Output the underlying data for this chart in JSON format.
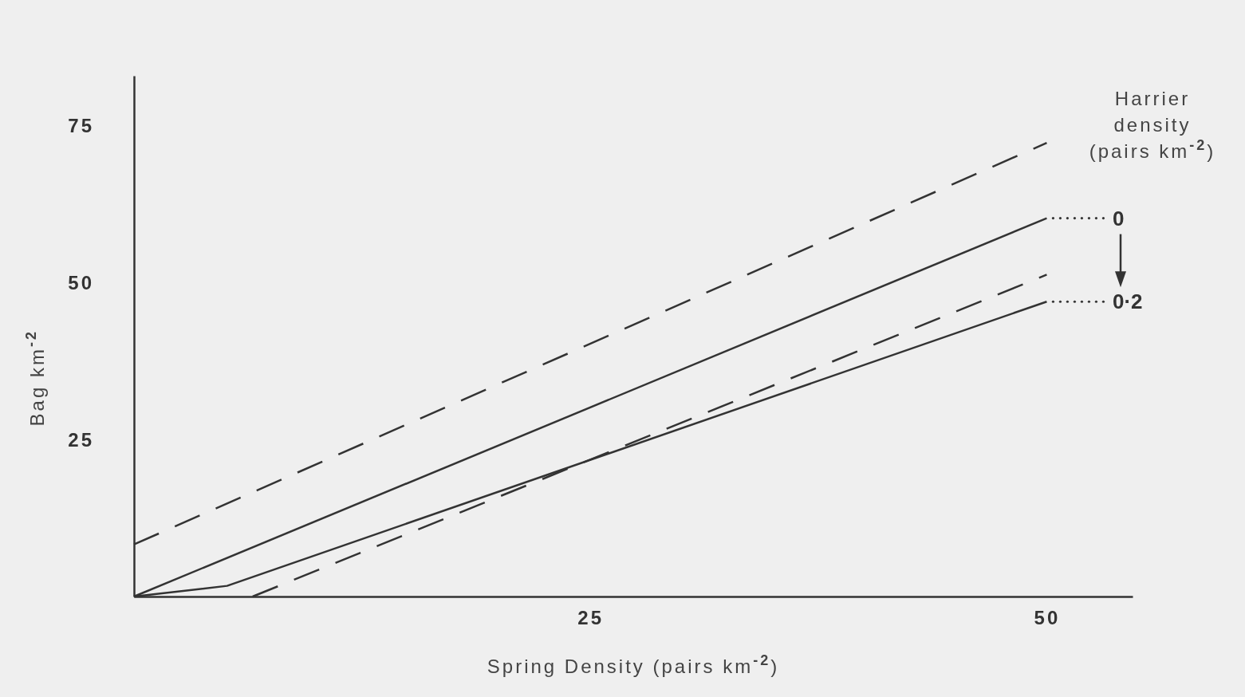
{
  "chart_data": {
    "type": "line",
    "xlabel": "Spring Density   (pairs km$^{-2}$)",
    "ylabel": "Bag km$^{-2}$",
    "legend_title": "Harrier density (pairs km$^{-2}$)",
    "xlim": [
      0,
      54.7
    ],
    "ylim": [
      0,
      83
    ],
    "xticks": [
      25,
      50
    ],
    "yticks": [
      25,
      50,
      75
    ],
    "grid": false,
    "legend": "right",
    "series": [
      {
        "x": [
          0,
          50
        ],
        "values": [
          8.3,
          72.3
        ],
        "color": "#333333",
        "line_style": "dashed"
      },
      {
        "name": "0",
        "x": [
          0,
          50
        ],
        "values": [
          0,
          60.3
        ],
        "color": "#333333",
        "line_style": "solid"
      },
      {
        "x": [
          6.5,
          50
        ],
        "values": [
          0,
          51.3
        ],
        "color": "#333333",
        "line_style": "dashed"
      },
      {
        "name": "0·2",
        "x": [
          0,
          5.1,
          50
        ],
        "values": [
          0,
          1.7,
          47
        ],
        "color": "#333333",
        "line_style": "solid"
      }
    ]
  }
}
